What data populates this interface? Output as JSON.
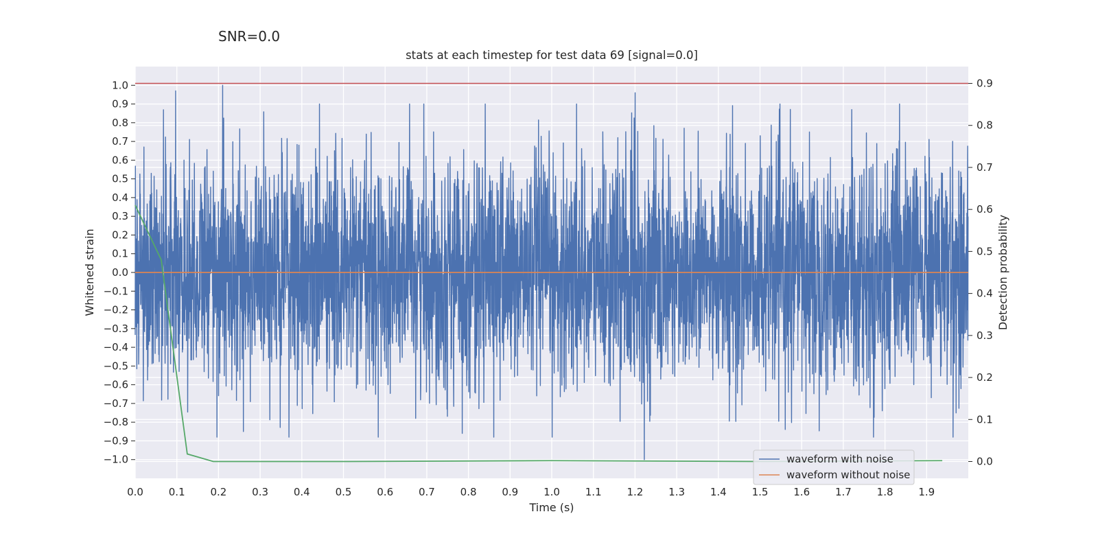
{
  "chart_data": {
    "type": "line",
    "suptitle": "SNR=0.0",
    "title": "stats at each timestep for test data 69 [signal=0.0]",
    "xlabel": "Time (s)",
    "ylabel": "Whitened strain",
    "y2label": "Detection probability",
    "xlim": [
      0.0,
      2.0
    ],
    "ylim": [
      -1.1,
      1.1
    ],
    "y2lim": [
      -0.04,
      0.94
    ],
    "xticks": [
      "0.0",
      "0.1",
      "0.2",
      "0.3",
      "0.4",
      "0.5",
      "0.6",
      "0.7",
      "0.8",
      "0.9",
      "1.0",
      "1.1",
      "1.2",
      "1.3",
      "1.4",
      "1.5",
      "1.6",
      "1.7",
      "1.8",
      "1.9"
    ],
    "yticks": [
      "1.0",
      "0.9",
      "0.8",
      "0.7",
      "0.6",
      "0.5",
      "0.4",
      "0.3",
      "0.2",
      "0.1",
      "0.0",
      "−0.1",
      "−0.2",
      "−0.3",
      "−0.4",
      "−0.5",
      "−0.6",
      "−0.7",
      "−0.8",
      "−0.9",
      "−1.0"
    ],
    "y2ticks": [
      "0.9",
      "0.8",
      "0.7",
      "0.6",
      "0.5",
      "0.4",
      "0.3",
      "0.2",
      "0.1",
      "0.0"
    ],
    "grid": true,
    "legend_position": "lower-right",
    "threshold": {
      "axis": "right",
      "value": 0.9,
      "color": "#c44e52"
    },
    "series": [
      {
        "name": "waveform with noise",
        "axis": "left",
        "color": "#4c72b0",
        "kind": "noise",
        "sample_rate": 2048,
        "approx_std": 0.3,
        "x_range": [
          0.0,
          2.0
        ],
        "annotated_extremes": [
          {
            "x": 0.097,
            "y": 0.97
          },
          {
            "x": 0.21,
            "y": 1.0
          },
          {
            "x": 0.26,
            "y": -0.85
          },
          {
            "x": 0.785,
            "y": -0.86
          },
          {
            "x": 1.2,
            "y": 0.96
          },
          {
            "x": 1.222,
            "y": -1.0
          },
          {
            "x": 1.72,
            "y": 0.87
          }
        ]
      },
      {
        "name": "waveform without noise",
        "axis": "left",
        "color": "#dd8452",
        "x": [
          0.0,
          2.0
        ],
        "y": [
          0.0,
          0.0
        ]
      },
      {
        "name": "detection probability",
        "axis": "right",
        "color": "#55a868",
        "x": [
          0.0,
          0.0625,
          0.125,
          0.1875,
          0.5,
          1.0,
          1.5,
          1.9375
        ],
        "y": [
          0.61,
          0.48,
          0.018,
          0.0,
          0.0,
          0.002,
          0.0,
          0.002
        ]
      }
    ],
    "legend": [
      "waveform with noise",
      "waveform without noise"
    ]
  }
}
